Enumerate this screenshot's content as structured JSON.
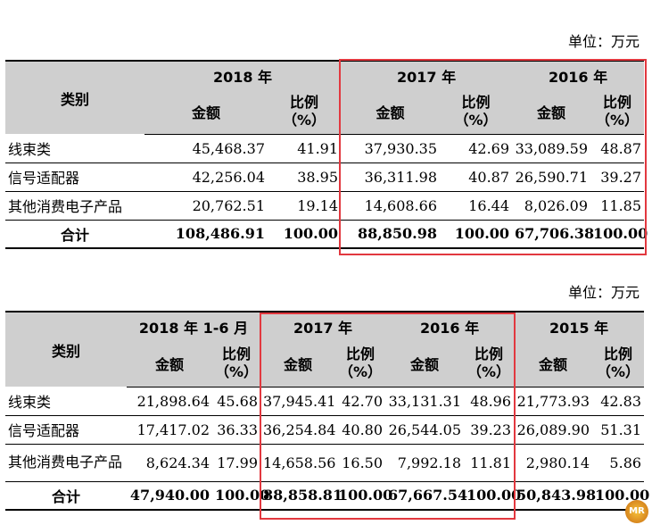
{
  "unit_label": "单位：万元",
  "table1": {
    "category_header": "类别",
    "years": [
      "2018 年",
      "2017 年",
      "2016 年"
    ],
    "amount_label": "金额",
    "ratio_label_line1": "比例",
    "ratio_label_line2": "（%）",
    "rows": [
      {
        "name": "线束类",
        "values": [
          "45,468.37",
          "41.91",
          "37,930.35",
          "42.69",
          "33,089.59",
          "48.87"
        ]
      },
      {
        "name": "信号适配器",
        "values": [
          "42,256.04",
          "38.95",
          "36,311.98",
          "40.87",
          "26,590.71",
          "39.27"
        ]
      },
      {
        "name": "其他消费电子产品",
        "values": [
          "20,762.51",
          "19.14",
          "14,608.66",
          "16.44",
          "8,026.09",
          "11.85"
        ]
      }
    ],
    "total": {
      "name": "合计",
      "values": [
        "108,486.91",
        "100.00",
        "88,850.98",
        "100.00",
        "67,706.38",
        "100.00"
      ]
    }
  },
  "table2": {
    "category_header": "类别",
    "years": [
      "2018 年 1-6 月",
      "2017 年",
      "2016 年",
      "2015 年"
    ],
    "amount_label": "金额",
    "ratio_label_line1": "比例",
    "ratio_label_line2": "（%）",
    "rows": [
      {
        "name": "线束类",
        "values": [
          "21,898.64",
          "45.68",
          "37,945.41",
          "42.70",
          "33,131.31",
          "48.96",
          "21,773.93",
          "42.83"
        ]
      },
      {
        "name": "信号适配器",
        "values": [
          "17,417.02",
          "36.33",
          "36,254.84",
          "40.80",
          "26,544.05",
          "39.23",
          "26,089.90",
          "51.31"
        ]
      },
      {
        "name": "其他消费电子产品",
        "values": [
          "8,624.34",
          "17.99",
          "14,658.56",
          "16.50",
          "7,992.18",
          "11.81",
          "2,980.14",
          "5.86"
        ]
      }
    ],
    "total": {
      "name": "合计",
      "values": [
        "47,940.00",
        "100.00",
        "88,858.81",
        "100.00",
        "67,667.54",
        "100.00",
        "50,843.98",
        "100.00"
      ]
    }
  },
  "watermark_text": "MR",
  "colors": {
    "highlight_box": "#e2383f",
    "header_bg": "#cfcfcf"
  }
}
